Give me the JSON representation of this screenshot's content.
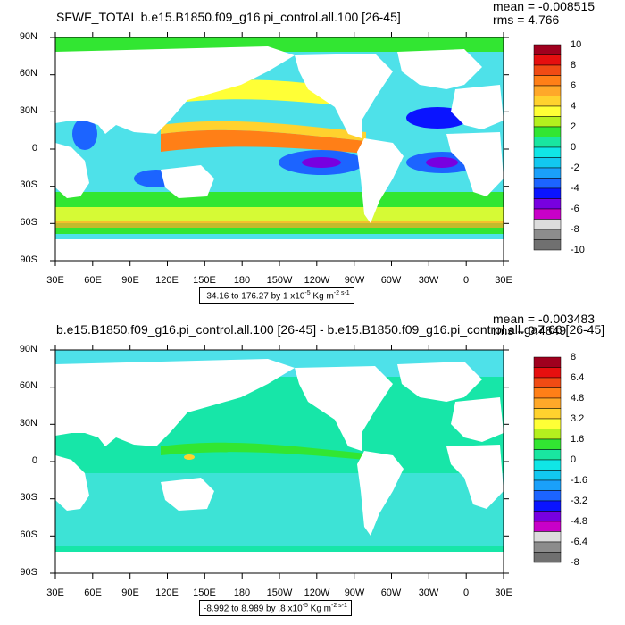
{
  "panels": [
    {
      "title": "SFWF_TOTAL b.e15.B1850.f09_g16.pi_control.all.100 [26-45]",
      "mean": "mean = -0.008515",
      "rms": "rms = 4.766",
      "range_text": "-34.16 to 176.27 by 1 x10",
      "range_exp": "-5",
      "range_units": " Kg m",
      "range_units_exp": "-2 s-1",
      "colorbar_labels": [
        "10",
        "8",
        "6",
        "4",
        "2",
        "0",
        "-2",
        "-4",
        "-6",
        "-8",
        "-10"
      ],
      "colorbar_colors": [
        "#a0001e",
        "#e60f0f",
        "#f04b14",
        "#ff7f17",
        "#ffa829",
        "#ffd22e",
        "#ffff36",
        "#b4f01e",
        "#32e632",
        "#19e6a0",
        "#10e6e6",
        "#12c8f0",
        "#1aa0fa",
        "#1c64ff",
        "#0a14ff",
        "#7800e0",
        "#c800c8",
        "#dcdcdc",
        "#8c8c8c",
        "#707070"
      ]
    },
    {
      "title": "b.e15.B1850.f09_g16.pi_control.all.100 [26-45] - b.e15.B1850.f09_g16.pi_control.all.ga7.66 [26-45]",
      "mean": "mean = -0.003483",
      "rms": "rms = 0.4849",
      "range_text": "-8.992 to 8.989 by .8 x10",
      "range_exp": "-5",
      "range_units": " Kg m",
      "range_units_exp": "-2 s-1",
      "colorbar_labels": [
        "8",
        "6.4",
        "4.8",
        "3.2",
        "1.6",
        "0",
        "-1.6",
        "-3.2",
        "-4.8",
        "-6.4",
        "-8"
      ],
      "colorbar_colors": [
        "#a0001e",
        "#e60f0f",
        "#f04b14",
        "#ff7f17",
        "#ffa829",
        "#ffd22e",
        "#ffff36",
        "#b4f01e",
        "#32e632",
        "#19e6a0",
        "#10e6e6",
        "#12c8f0",
        "#1aa0fa",
        "#1c64ff",
        "#0a14ff",
        "#7800e0",
        "#c800c8",
        "#dcdcdc",
        "#8c8c8c",
        "#707070"
      ]
    }
  ],
  "axes": {
    "y_labels": [
      "90N",
      "60N",
      "30N",
      "0",
      "30S",
      "60S",
      "90S"
    ],
    "x_labels": [
      "30E",
      "60E",
      "90E",
      "120E",
      "150E",
      "180",
      "150W",
      "120W",
      "90W",
      "60W",
      "30W",
      "0",
      "30E"
    ]
  },
  "colors": {
    "top_ocean_base": "#4ee1e9",
    "bottom_ocean_base": "#17e6a8",
    "land": "#ffffff"
  }
}
